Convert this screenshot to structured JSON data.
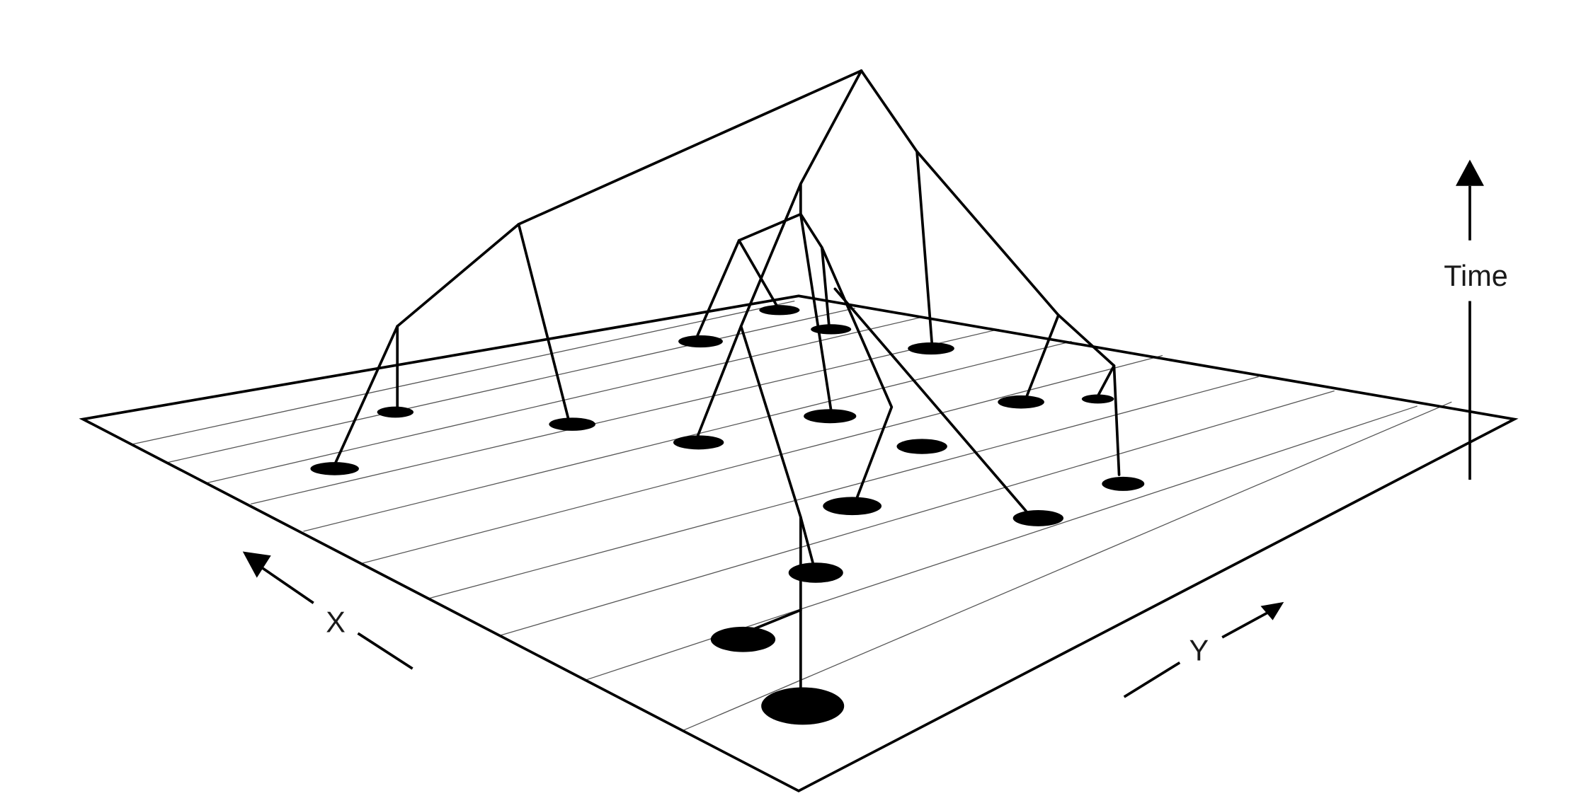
{
  "labels": {
    "time": "Time",
    "x": "X",
    "y": "Y"
  },
  "colors": {
    "ink": "#000000",
    "grid": "#555555",
    "background": "#ffffff"
  }
}
